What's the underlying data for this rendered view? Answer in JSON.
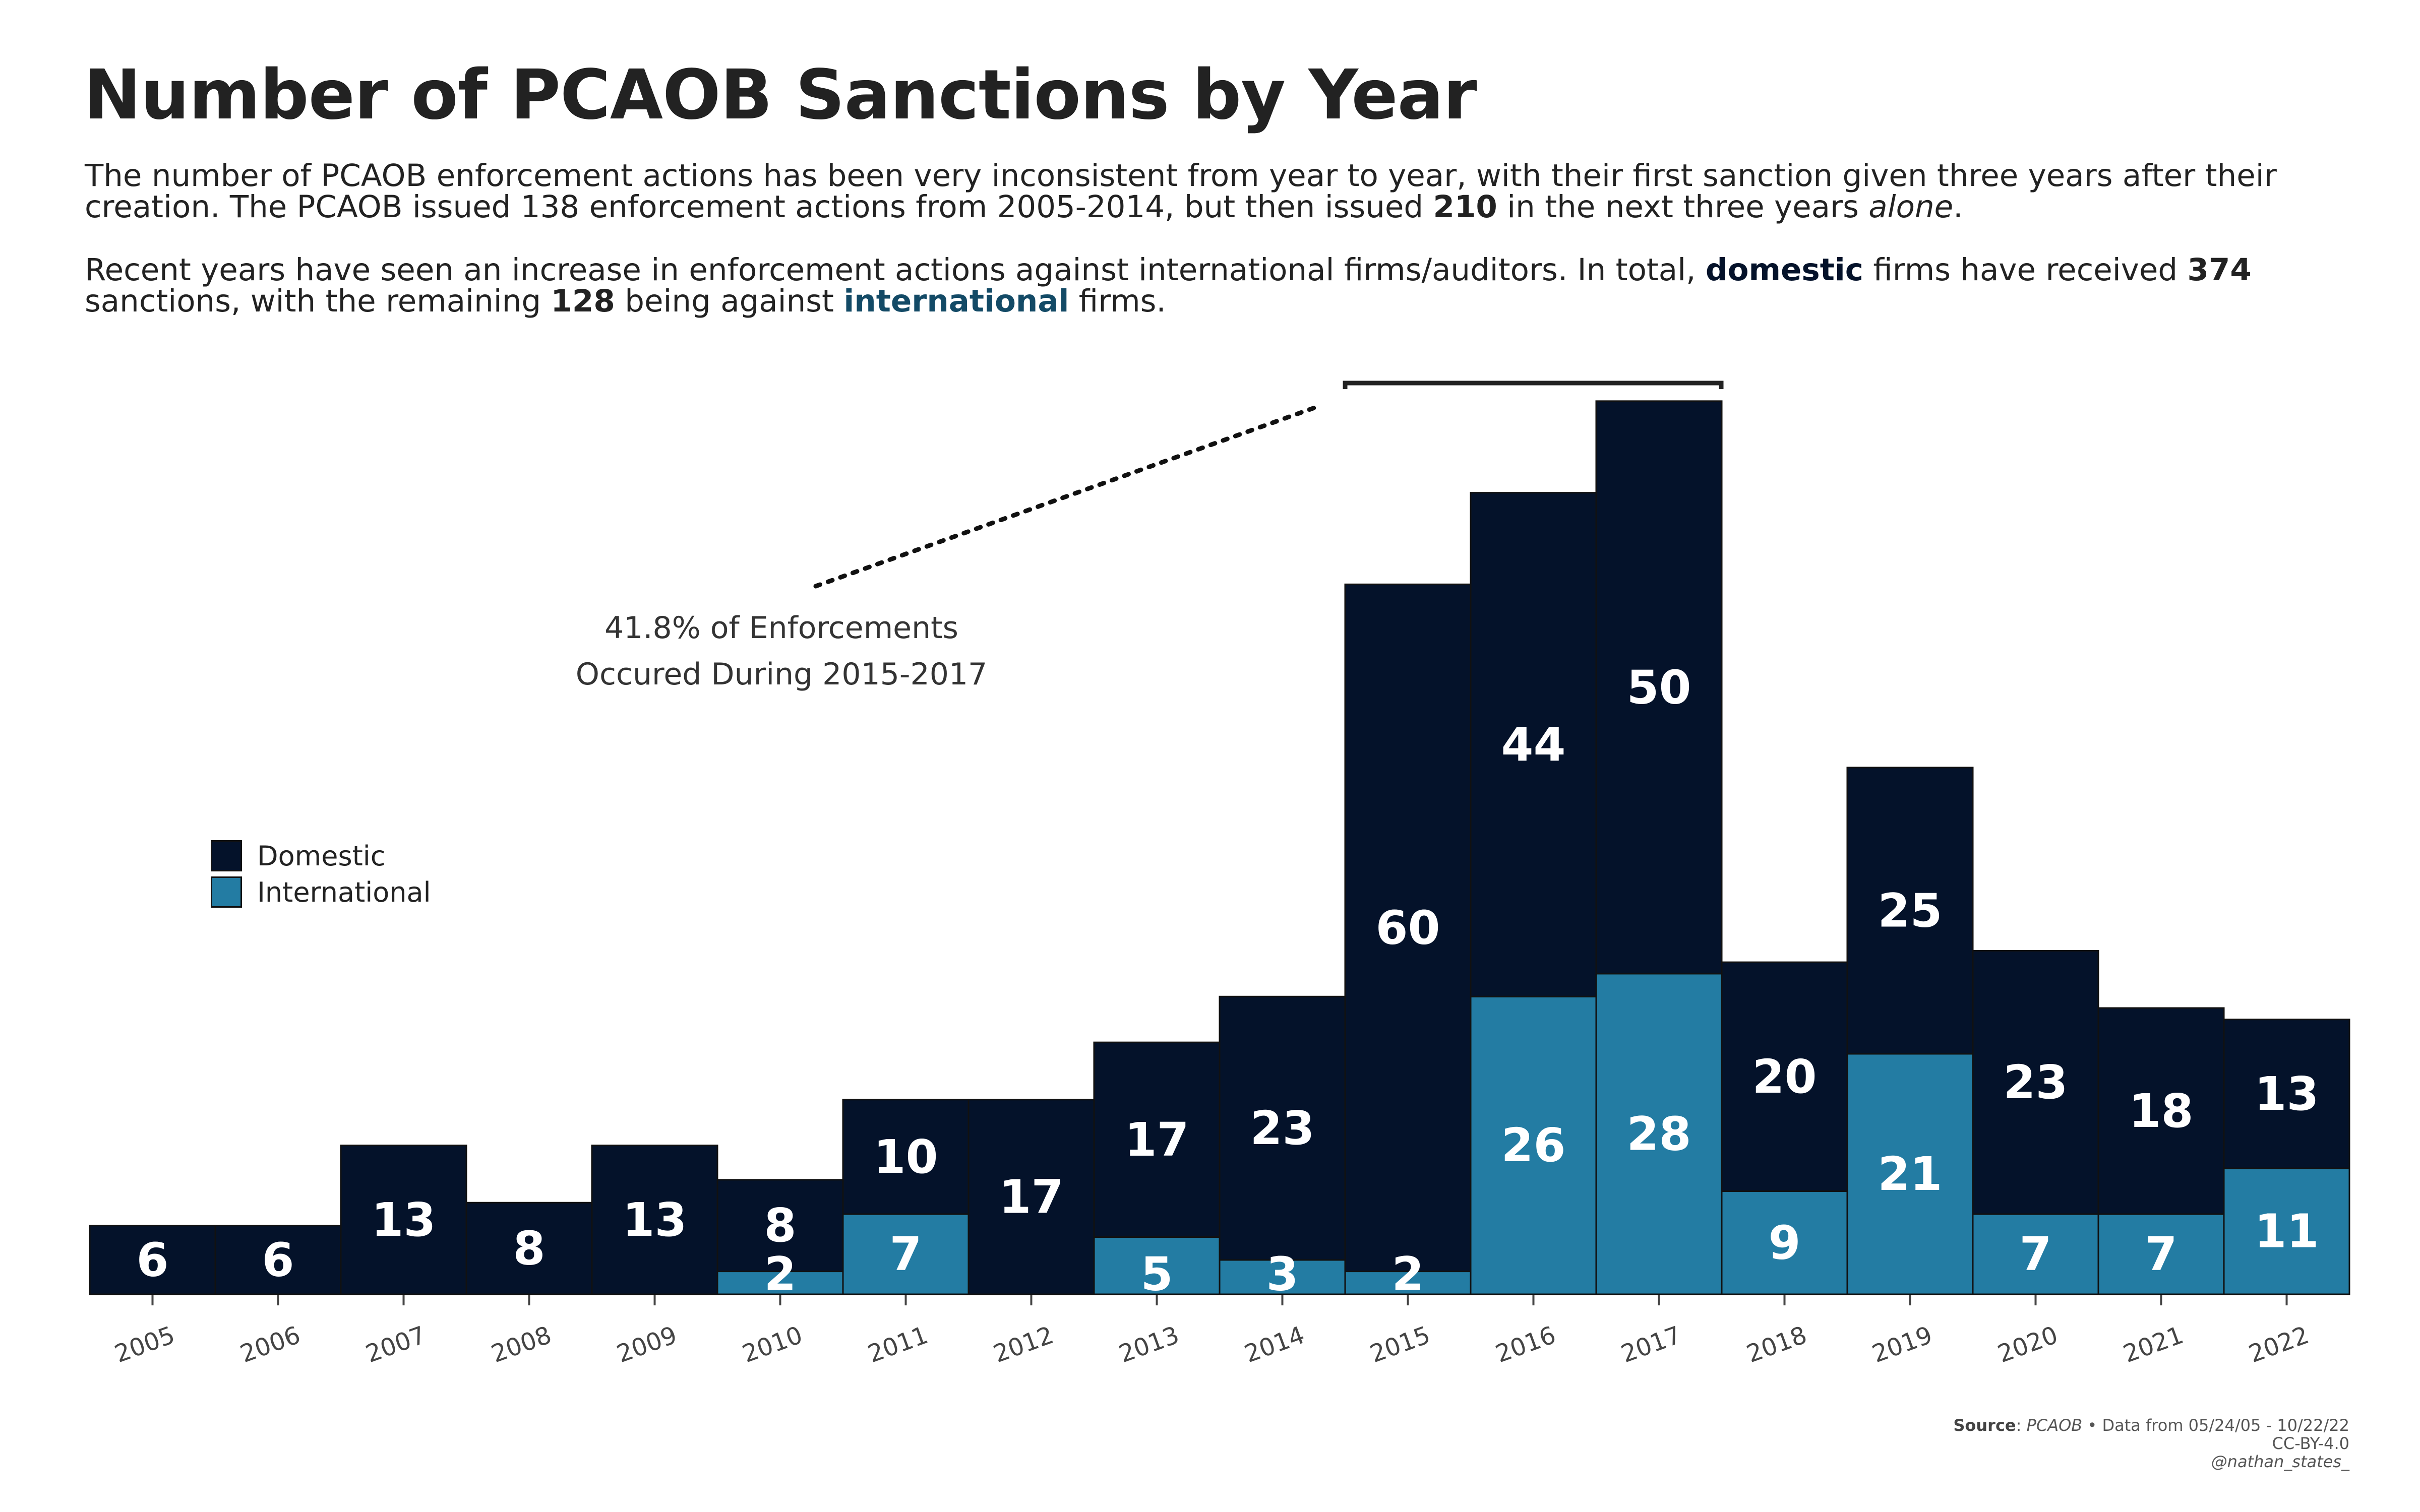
{
  "title": "Number of PCAOB Sanctions by Year",
  "subtitle": {
    "p1_a": "The number of PCAOB enforcement actions has been very inconsistent from year to year, with their first sanction given three years after their creation. The PCAOB issued 138 enforcement actions from 2005-2014, but then issued ",
    "p1_bold": "210",
    "p1_b": " in the next three years ",
    "p1_italic": "alone",
    "p1_c": ".",
    "p2_a": "Recent years have seen an increase in enforcement actions against international firms/auditors. In total, ",
    "p2_domestic": "domestic",
    "p2_b": " firms have received ",
    "p2_374": "374",
    "p2_c": " sanctions, with the remaining ",
    "p2_128": "128",
    "p2_d": " being against ",
    "p2_international": "international",
    "p2_e": " firms."
  },
  "annotation": {
    "line1": "41.8% of Enforcements",
    "line2": "Occured During 2015-2017"
  },
  "legend": {
    "domestic": "Domestic",
    "international": "International"
  },
  "source": {
    "label": "Source",
    "name": "PCAOB",
    "range": " • Data from 05/24/05 - 10/22/22",
    "license": "CC-BY-4.0",
    "handle": "@nathan_states_"
  },
  "colors": {
    "domestic": "#04122a",
    "international": "#237ca3",
    "outline": "#111111"
  },
  "chart_data": {
    "type": "bar",
    "stacked": true,
    "categories": [
      "2005",
      "2006",
      "2007",
      "2008",
      "2009",
      "2010",
      "2011",
      "2012",
      "2013",
      "2014",
      "2015",
      "2016",
      "2017",
      "2018",
      "2019",
      "2020",
      "2021",
      "2022"
    ],
    "series": [
      {
        "name": "International",
        "values": [
          0,
          0,
          0,
          0,
          0,
          2,
          7,
          0,
          5,
          3,
          2,
          26,
          28,
          9,
          21,
          7,
          7,
          11
        ]
      },
      {
        "name": "Domestic",
        "values": [
          6,
          6,
          13,
          8,
          13,
          8,
          10,
          17,
          17,
          23,
          60,
          44,
          50,
          20,
          25,
          23,
          18,
          13
        ]
      }
    ],
    "ylim": [
      0,
      80
    ],
    "grid": false,
    "legend_position": "left"
  }
}
